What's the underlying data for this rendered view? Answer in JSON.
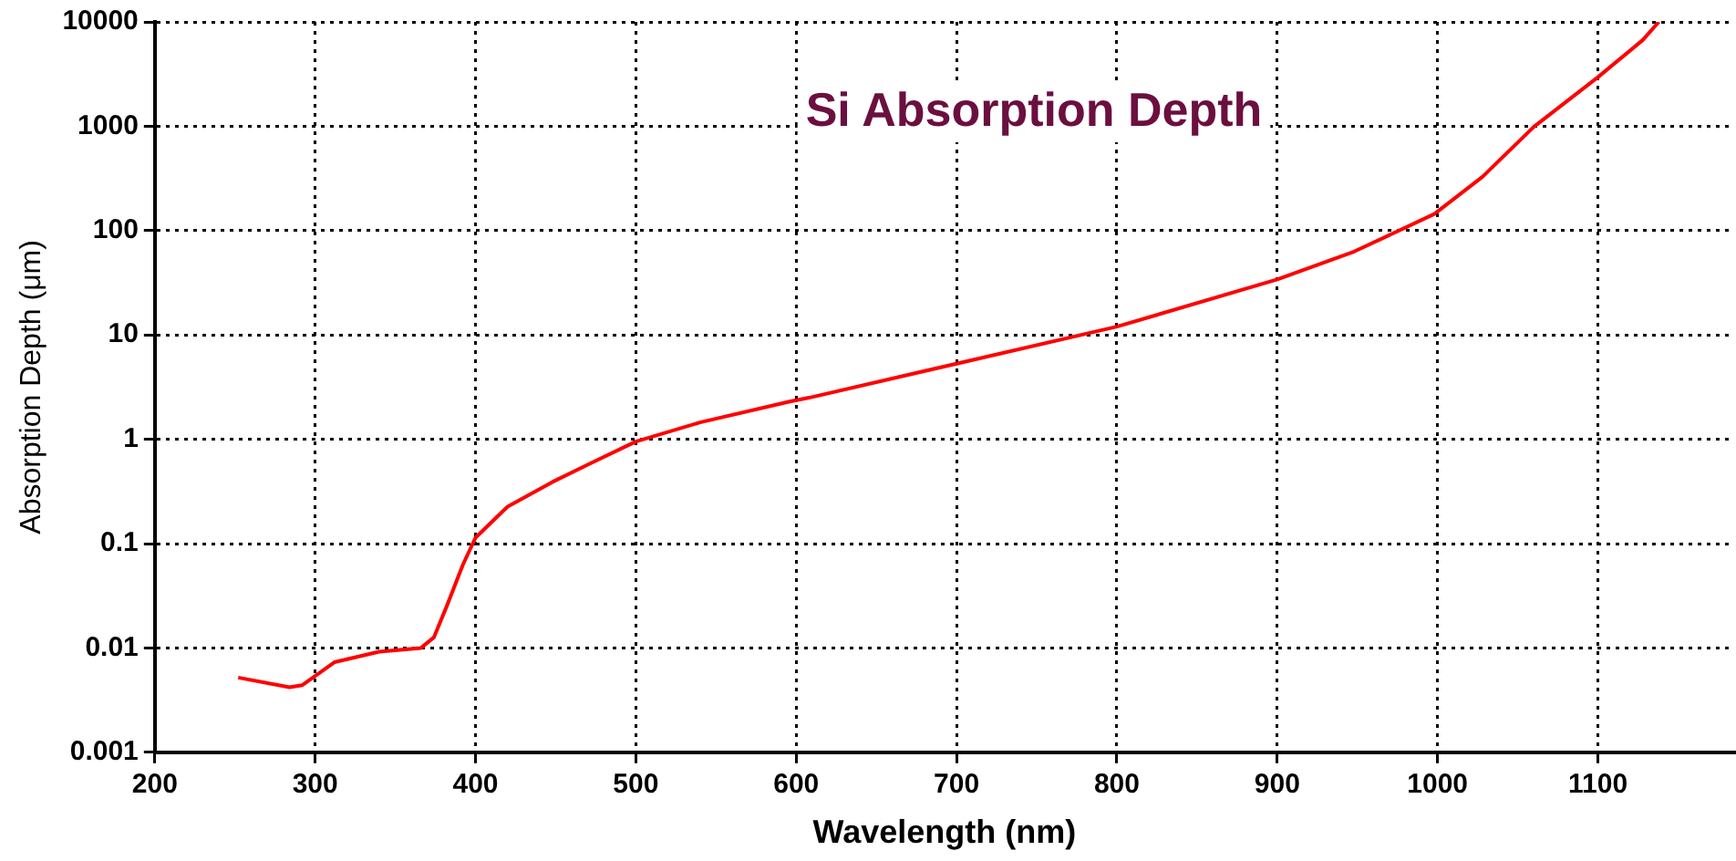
{
  "chart_data": {
    "type": "line",
    "title": "Si Absorption Depth",
    "xlabel": "Wavelength (nm)",
    "ylabel": "Absorption Depth (μm)",
    "log": "y",
    "grid": true,
    "legend": false,
    "marker": "none",
    "line_style": "solid",
    "xlim": [
      200,
      1185
    ],
    "xticks": [
      200,
      300,
      400,
      500,
      600,
      700,
      800,
      900,
      1000,
      1100
    ],
    "ylim": [
      0.001,
      10000
    ],
    "yticks": [
      0.001,
      0.01,
      0.1,
      1,
      10,
      100,
      1000,
      10000
    ],
    "series": [
      {
        "color": "#ff0000",
        "x": [
          252,
          284,
          292,
          312,
          340,
          366,
          374,
          382,
          392,
          400,
          420,
          448,
          472,
          500,
          540,
          596,
          608,
          700,
          800,
          900,
          948,
          998,
          1028,
          1060,
          1100,
          1128,
          1138
        ],
        "values": [
          0.0052,
          0.0042,
          0.0044,
          0.0073,
          0.0092,
          0.01,
          0.0126,
          0.025,
          0.062,
          0.114,
          0.226,
          0.39,
          0.59,
          0.95,
          1.45,
          2.3,
          2.5,
          5.3,
          12,
          34,
          63,
          144,
          327,
          985,
          2950,
          6700,
          10000
        ]
      }
    ]
  }
}
